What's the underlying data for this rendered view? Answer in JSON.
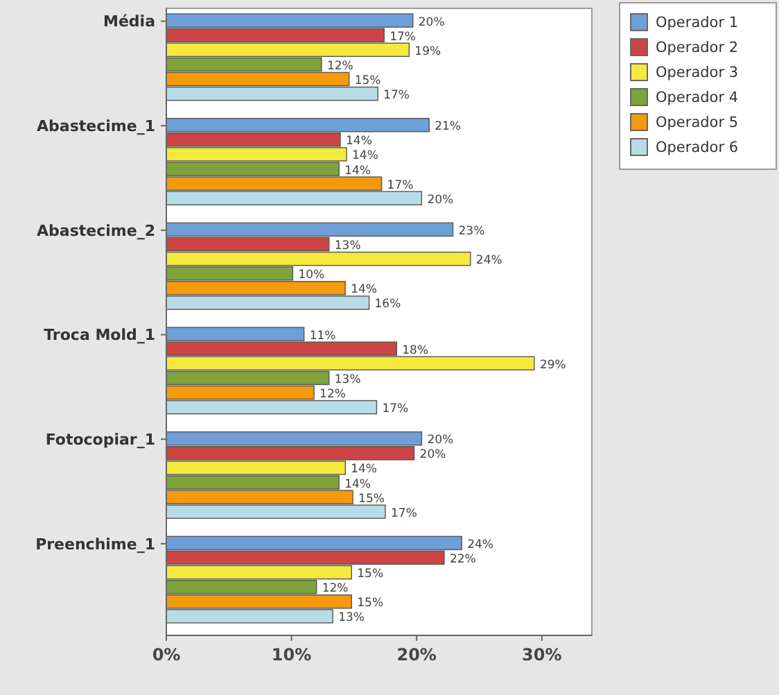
{
  "chart_data": {
    "type": "bar",
    "orientation": "horizontal",
    "categories": [
      "Média",
      "Abastecime_1",
      "Abastecime_2",
      "Troca Mold_1",
      "Fotocopiar_1",
      "Preenchime_1"
    ],
    "series": [
      {
        "name": "Operador 1",
        "color": "#6f9fd8",
        "values": [
          19.7,
          21.0,
          22.9,
          11.0,
          20.4,
          23.6
        ],
        "value_labels": [
          "20%",
          "21%",
          "23%",
          "11%",
          "20%",
          "24%"
        ]
      },
      {
        "name": "Operador 2",
        "color": "#cc4444",
        "values": [
          17.4,
          13.9,
          13.0,
          18.4,
          19.8,
          22.2
        ],
        "value_labels": [
          "17%",
          "14%",
          "13%",
          "18%",
          "20%",
          "22%"
        ]
      },
      {
        "name": "Operador 3",
        "color": "#f5ea3c",
        "values": [
          19.4,
          14.4,
          24.3,
          29.4,
          14.3,
          14.8
        ],
        "value_labels": [
          "19%",
          "14%",
          "24%",
          "29%",
          "14%",
          "15%"
        ]
      },
      {
        "name": "Operador 4",
        "color": "#7fa33a",
        "values": [
          12.4,
          13.8,
          10.1,
          13.0,
          13.8,
          12.0
        ],
        "value_labels": [
          "12%",
          "14%",
          "10%",
          "13%",
          "14%",
          "12%"
        ]
      },
      {
        "name": "Operador 5",
        "color": "#f59a0c",
        "values": [
          14.6,
          17.2,
          14.3,
          11.8,
          14.9,
          14.8
        ],
        "value_labels": [
          "15%",
          "17%",
          "14%",
          "12%",
          "15%",
          "15%"
        ]
      },
      {
        "name": "Operador 6",
        "color": "#b8dbe8",
        "values": [
          16.9,
          20.4,
          16.2,
          16.8,
          17.5,
          13.3
        ],
        "value_labels": [
          "17%",
          "20%",
          "16%",
          "17%",
          "17%",
          "13%"
        ]
      }
    ],
    "xlim": [
      0,
      34
    ],
    "xticks": [
      {
        "value": 0,
        "label": "0%"
      },
      {
        "value": 10,
        "label": "10%"
      },
      {
        "value": 20,
        "label": "20%"
      },
      {
        "value": 30,
        "label": "30%"
      }
    ],
    "legend": "top right",
    "grid": false
  }
}
